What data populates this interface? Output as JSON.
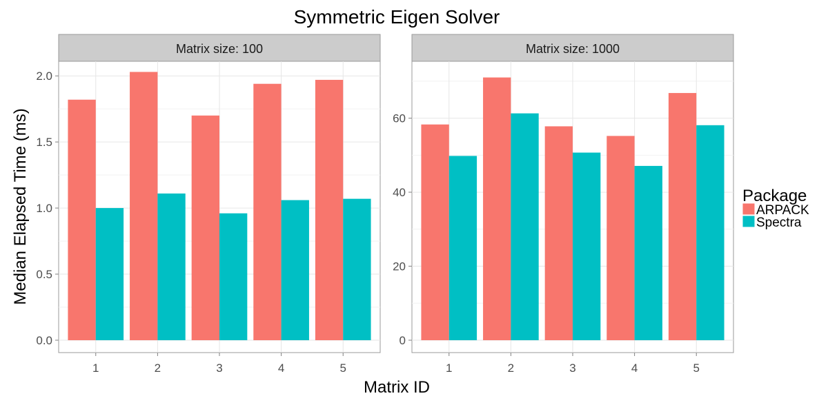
{
  "chart_data": {
    "type": "bar",
    "title": "Symmetric Eigen Solver",
    "xlabel": "Matrix ID",
    "ylabel": "Median Elapsed Time (ms)",
    "categories": [
      "1",
      "2",
      "3",
      "4",
      "5"
    ],
    "legend": {
      "title": "Package",
      "placement": "right",
      "entries": [
        "ARPACK",
        "Spectra"
      ]
    },
    "colors": {
      "ARPACK": "#F8766D",
      "Spectra": "#00BFC4"
    },
    "grid": true,
    "facets": [
      {
        "label": "Matrix size: 100",
        "ylim": [
          0,
          2.1
        ],
        "yticks": [
          0.0,
          0.5,
          1.0,
          1.5,
          2.0
        ],
        "ytick_labels": [
          "0.0",
          "0.5",
          "1.0",
          "1.5",
          "2.0"
        ],
        "series": [
          {
            "name": "ARPACK",
            "values": [
              1.82,
              2.03,
              1.7,
              1.94,
              1.97
            ]
          },
          {
            "name": "Spectra",
            "values": [
              1.0,
              1.11,
              0.96,
              1.06,
              1.07
            ]
          }
        ]
      },
      {
        "label": "Matrix size: 1000",
        "ylim": [
          0,
          75
        ],
        "yticks": [
          0,
          20,
          40,
          60
        ],
        "ytick_labels": [
          "0",
          "20",
          "40",
          "60"
        ],
        "series": [
          {
            "name": "ARPACK",
            "values": [
              58.3,
              71.0,
              57.8,
              55.2,
              66.8
            ]
          },
          {
            "name": "Spectra",
            "values": [
              49.8,
              61.3,
              50.7,
              47.1,
              58.1
            ]
          }
        ]
      }
    ]
  }
}
